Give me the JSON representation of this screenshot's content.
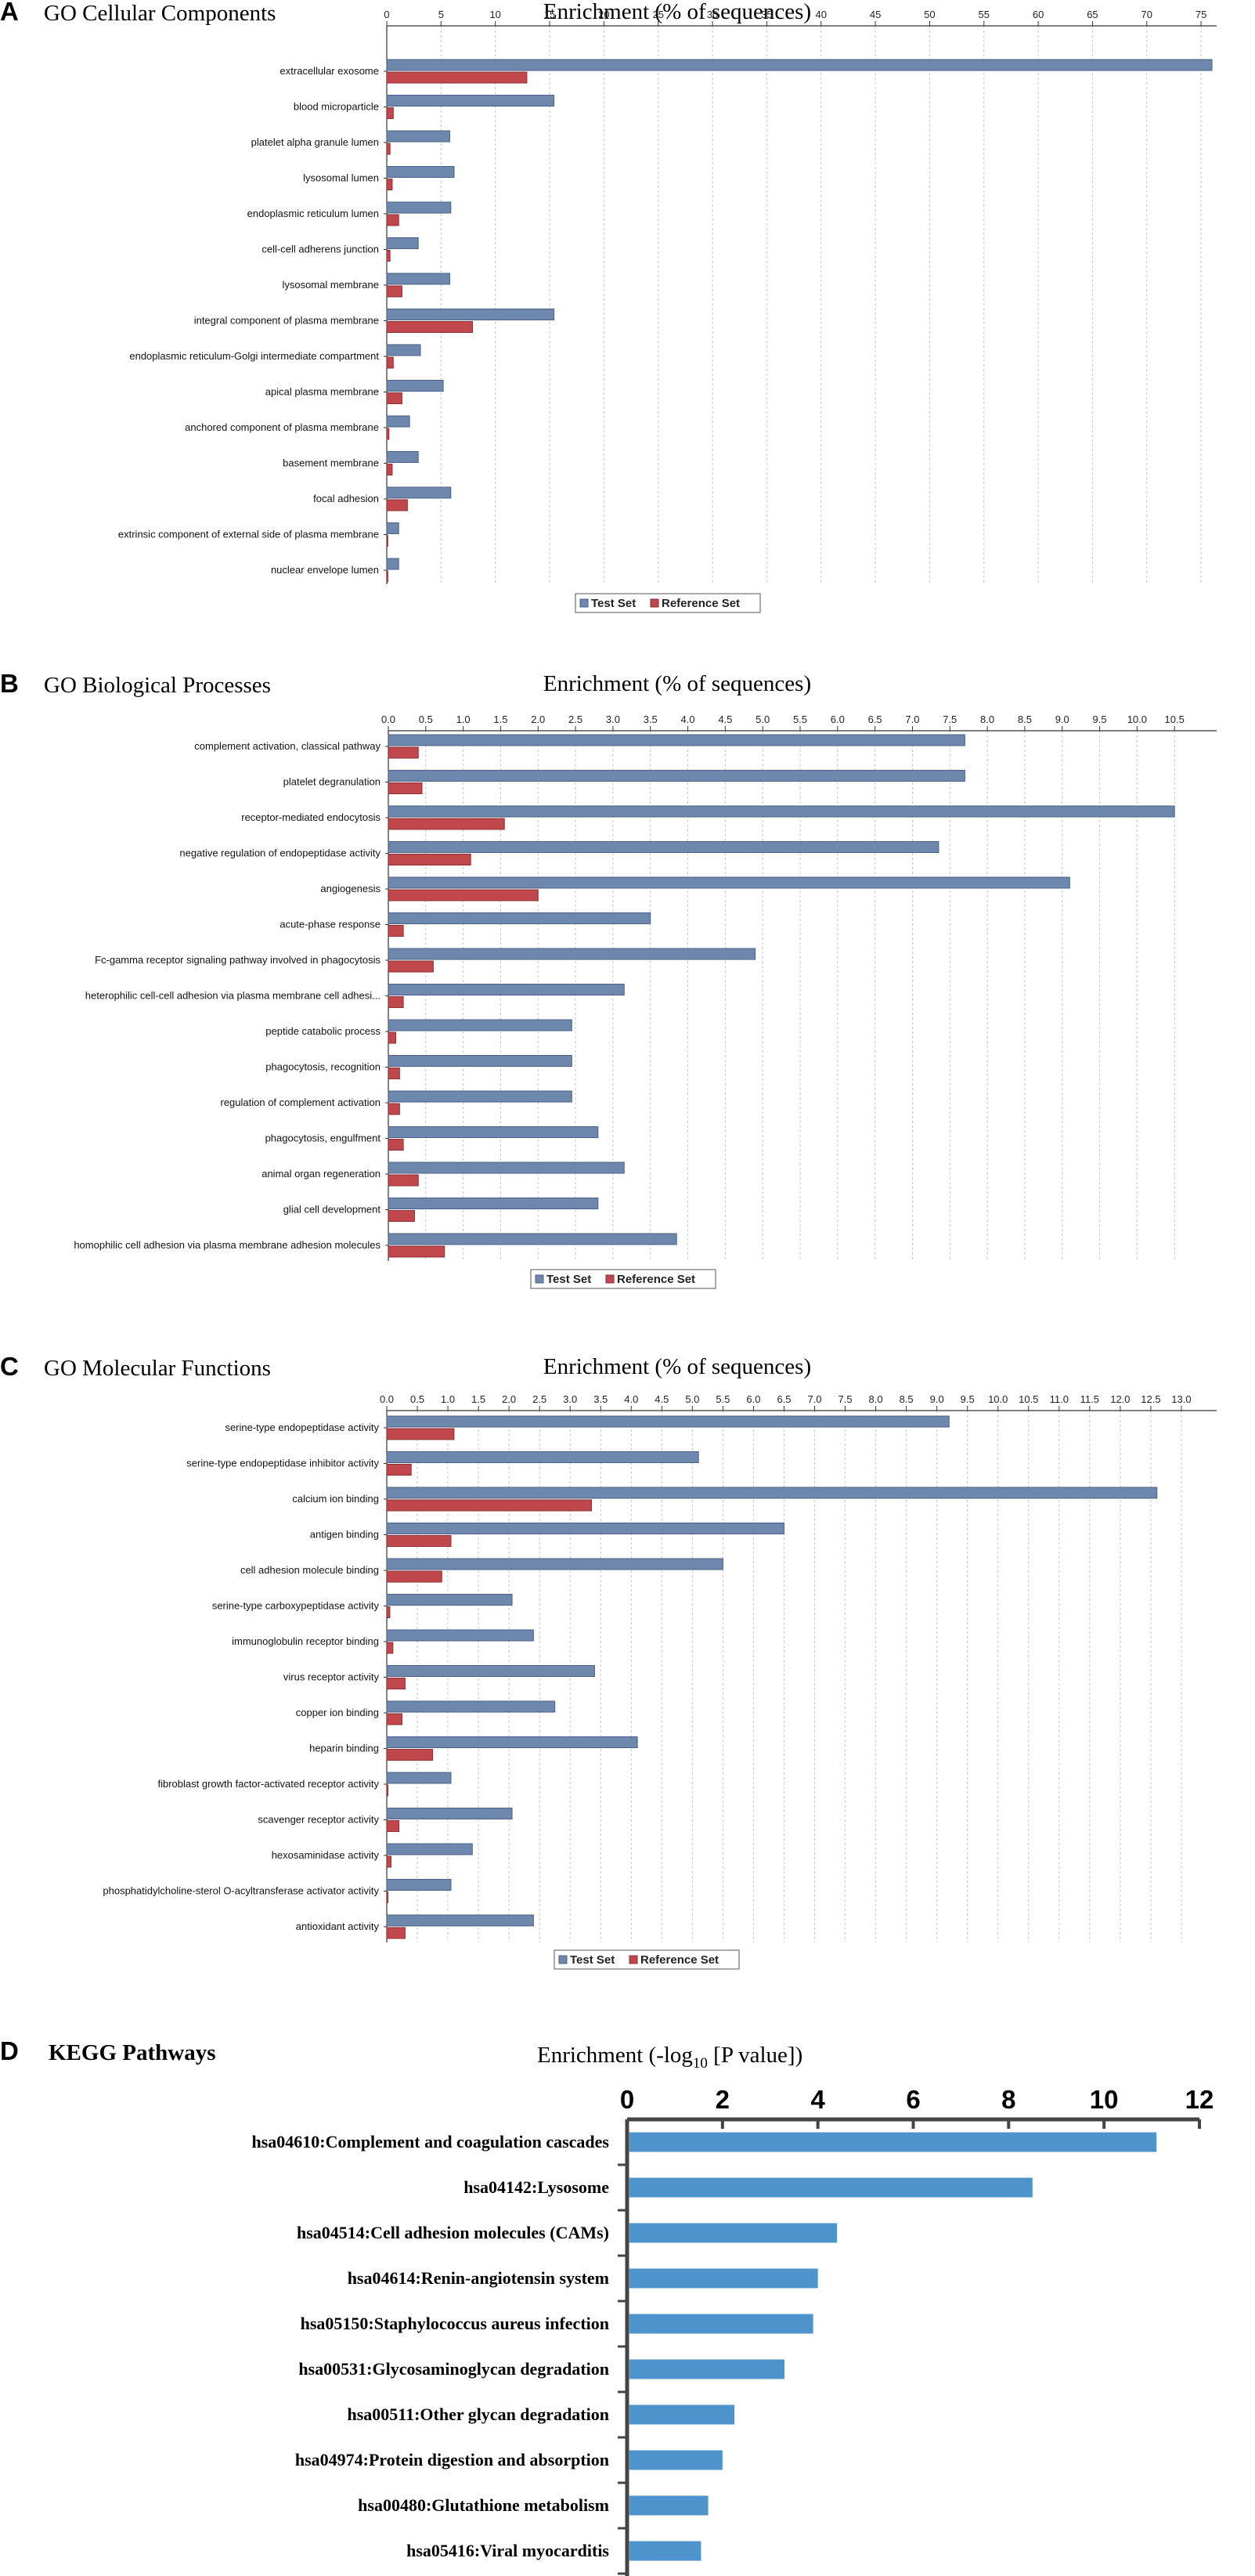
{
  "colors": {
    "test": "#6e87ad",
    "test_stroke": "#4b6187",
    "reference": "#c0474b",
    "reference_stroke": "#8e2f33",
    "kegg": "#4f93cc",
    "grid": "#c4c4c4",
    "axis": "#333333"
  },
  "chart_data": [
    {
      "type": "bar",
      "panel_letter": "A",
      "title": "GO Cellular Components",
      "xlabel": "Enrichment (% of sequences)",
      "xlim": [
        0,
        76
      ],
      "ticks": [
        "0",
        "5",
        "10",
        "15",
        "20",
        "25",
        "30",
        "35",
        "40",
        "45",
        "50",
        "55",
        "60",
        "65",
        "70",
        "75"
      ],
      "legend": [
        "Test Set",
        "Reference Set"
      ],
      "categories": [
        "extracellular exosome",
        "blood microparticle",
        "platelet alpha granule lumen",
        "lysosomal lumen",
        "endoplasmic reticulum lumen",
        "cell-cell adherens junction",
        "lysosomal membrane",
        "integral component of plasma membrane",
        "endoplasmic reticulum-Golgi intermediate compartment",
        "apical plasma membrane",
        "anchored component of plasma membrane",
        "basement membrane",
        "focal adhesion",
        "extrinsic component of external side of plasma membrane",
        "nuclear envelope lumen"
      ],
      "series": [
        {
          "name": "Test Set",
          "values": [
            76,
            15.4,
            5.8,
            6.2,
            5.9,
            2.9,
            5.8,
            15.4,
            3.1,
            5.2,
            2.1,
            2.9,
            5.9,
            1.1,
            1.1
          ]
        },
        {
          "name": "Reference Set",
          "values": [
            12.9,
            0.6,
            0.3,
            0.5,
            1.1,
            0.3,
            1.4,
            7.9,
            0.6,
            1.4,
            0.2,
            0.5,
            1.9,
            0.1,
            0.1
          ]
        }
      ]
    },
    {
      "type": "bar",
      "panel_letter": "B",
      "title": "GO Biological Processes",
      "xlabel": "Enrichment (% of sequences)",
      "xlim": [
        0,
        11
      ],
      "ticks": [
        "0.0",
        "0.5",
        "1.0",
        "1.5",
        "2.0",
        "2.5",
        "3.0",
        "3.5",
        "4.0",
        "4.5",
        "5.0",
        "5.5",
        "6.0",
        "6.5",
        "7.0",
        "7.5",
        "8.0",
        "8.5",
        "9.0",
        "9.5",
        "10.0",
        "10.5"
      ],
      "legend": [
        "Test Set",
        "Reference Set"
      ],
      "categories": [
        "complement activation, classical pathway",
        "platelet degranulation",
        "receptor-mediated endocytosis",
        "negative regulation of endopeptidase activity",
        "angiogenesis",
        "acute-phase response",
        "Fc-gamma receptor signaling pathway involved in phagocytosis",
        "heterophilic cell-cell adhesion via plasma membrane cell adhesi...",
        "peptide catabolic process",
        "phagocytosis, recognition",
        "regulation of complement activation",
        "phagocytosis, engulfment",
        "animal organ regeneration",
        "glial cell development",
        "homophilic cell adhesion via plasma membrane adhesion molecules"
      ],
      "series": [
        {
          "name": "Test Set",
          "values": [
            7.7,
            7.7,
            10.5,
            7.35,
            9.1,
            3.5,
            4.9,
            3.15,
            2.45,
            2.45,
            2.45,
            2.8,
            3.15,
            2.8,
            3.85
          ]
        },
        {
          "name": "Reference Set",
          "values": [
            0.4,
            0.45,
            1.55,
            1.1,
            2.0,
            0.2,
            0.6,
            0.2,
            0.1,
            0.15,
            0.15,
            0.2,
            0.4,
            0.35,
            0.75
          ]
        }
      ]
    },
    {
      "type": "bar",
      "panel_letter": "C",
      "title": "GO Molecular Functions",
      "xlabel": "Enrichment (% of sequences)",
      "xlim": [
        0,
        13.5
      ],
      "ticks": [
        "0.0",
        "0.5",
        "1.0",
        "1.5",
        "2.0",
        "2.5",
        "3.0",
        "3.5",
        "4.0",
        "4.5",
        "5.0",
        "5.5",
        "6.0",
        "6.5",
        "7.0",
        "7.5",
        "8.0",
        "8.5",
        "9.0",
        "9.5",
        "10.0",
        "10.5",
        "11.0",
        "11.5",
        "12.0",
        "12.5",
        "13.0"
      ],
      "legend": [
        "Test Set",
        "Reference Set"
      ],
      "categories": [
        "serine-type endopeptidase activity",
        "serine-type endopeptidase inhibitor activity",
        "calcium ion binding",
        "antigen binding",
        "cell adhesion molecule binding",
        "serine-type carboxypeptidase activity",
        "immunoglobulin receptor binding",
        "virus receptor activity",
        "copper ion binding",
        "heparin binding",
        "fibroblast growth factor-activated receptor activity",
        "scavenger receptor activity",
        "hexosaminidase activity",
        "phosphatidylcholine-sterol O-acyltransferase activator activity",
        "antioxidant activity"
      ],
      "series": [
        {
          "name": "Test Set",
          "values": [
            9.2,
            5.1,
            12.6,
            6.5,
            5.5,
            2.05,
            2.4,
            3.4,
            2.75,
            4.1,
            1.05,
            2.05,
            1.4,
            1.05,
            2.4
          ]
        },
        {
          "name": "Reference Set",
          "values": [
            1.1,
            0.4,
            3.35,
            1.05,
            0.9,
            0.05,
            0.1,
            0.3,
            0.25,
            0.75,
            0.02,
            0.2,
            0.07,
            0.02,
            0.3
          ]
        }
      ]
    },
    {
      "type": "bar",
      "panel_letter": "D",
      "title": "KEGG Pathways",
      "xlabel_prefix": "Enrichment (-log",
      "xlabel_sub": "10",
      "xlabel_suffix": " [P value])",
      "xlim": [
        0,
        12
      ],
      "ticks": [
        "0",
        "2",
        "4",
        "6",
        "8",
        "10",
        "12"
      ],
      "categories": [
        "hsa04610:Complement and coagulation cascades",
        "hsa04142:Lysosome",
        "hsa04514:Cell adhesion molecules (CAMs)",
        "hsa04614:Renin-angiotensin system",
        "hsa05150:Staphylococcus aureus infection",
        "hsa00531:Glycosaminoglycan degradation",
        "hsa00511:Other glycan degradation",
        "hsa04974:Protein digestion and absorption",
        "hsa00480:Glutathione metabolism",
        "hsa05416:Viral myocarditis"
      ],
      "values": [
        11.1,
        8.5,
        4.4,
        4.0,
        3.9,
        3.3,
        2.25,
        2.0,
        1.7,
        1.55
      ]
    }
  ]
}
